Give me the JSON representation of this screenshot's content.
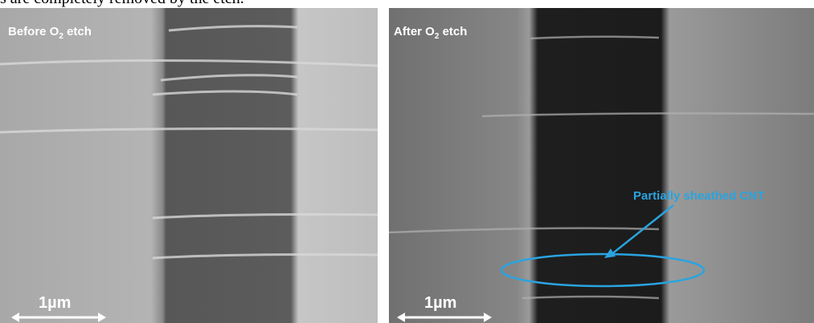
{
  "caption_fragment": "s are completely removed by the etch.",
  "panels": [
    {
      "label": {
        "main": "Before O",
        "sub": "2",
        "rest": " etch"
      },
      "scale_bar": "1µm"
    },
    {
      "label": {
        "main": "After O",
        "sub": "2",
        "rest": " etch"
      },
      "scale_bar": "1µm",
      "annotation": "Partially sheathed CNT"
    }
  ]
}
